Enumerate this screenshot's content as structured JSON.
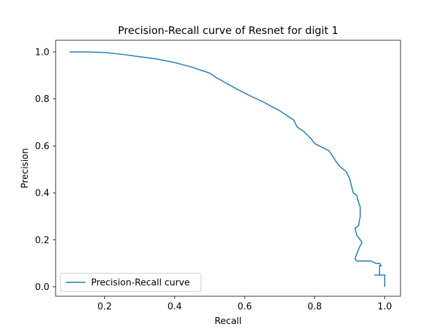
{
  "chart_data": {
    "type": "line",
    "title": "Precision-Recall curve of Resnet for digit 1",
    "xlabel": "Recall",
    "ylabel": "Precision",
    "xlim": [
      0.06,
      1.045
    ],
    "ylim": [
      -0.04,
      1.05
    ],
    "xticks": [
      0.2,
      0.4,
      0.6,
      0.8,
      1.0
    ],
    "xtick_labels": [
      "0.2",
      "0.4",
      "0.6",
      "0.8",
      "1.0"
    ],
    "yticks": [
      0.0,
      0.2,
      0.4,
      0.6,
      0.8,
      1.0
    ],
    "ytick_labels": [
      "0.0",
      "0.2",
      "0.4",
      "0.6",
      "0.8",
      "1.0"
    ],
    "grid": false,
    "legend_position": "lower-left",
    "series": [
      {
        "name": "Precision-Recall curve",
        "color": "#1f77b4",
        "x": [
          0.1,
          0.15,
          0.2,
          0.25,
          0.3,
          0.35,
          0.4,
          0.45,
          0.48,
          0.5,
          0.52,
          0.55,
          0.58,
          0.6,
          0.62,
          0.65,
          0.68,
          0.7,
          0.72,
          0.74,
          0.75,
          0.77,
          0.79,
          0.8,
          0.82,
          0.84,
          0.85,
          0.86,
          0.87,
          0.89,
          0.9,
          0.905,
          0.91,
          0.92,
          0.925,
          0.93,
          0.93,
          0.925,
          0.915,
          0.92,
          0.925,
          0.93,
          0.935,
          0.925,
          0.92,
          0.915,
          0.92,
          0.96,
          0.975,
          0.985,
          0.99,
          0.985,
          0.985,
          0.97,
          1.0,
          1.0
        ],
        "y": [
          1.0,
          1.0,
          0.998,
          0.99,
          0.98,
          0.97,
          0.955,
          0.935,
          0.92,
          0.91,
          0.89,
          0.865,
          0.84,
          0.825,
          0.81,
          0.79,
          0.765,
          0.75,
          0.73,
          0.71,
          0.68,
          0.66,
          0.63,
          0.61,
          0.595,
          0.58,
          0.56,
          0.535,
          0.515,
          0.49,
          0.46,
          0.43,
          0.4,
          0.39,
          0.36,
          0.34,
          0.3,
          0.26,
          0.25,
          0.22,
          0.21,
          0.2,
          0.19,
          0.16,
          0.14,
          0.12,
          0.11,
          0.11,
          0.1,
          0.1,
          0.09,
          0.09,
          0.05,
          0.05,
          0.05,
          0.0
        ]
      }
    ]
  }
}
